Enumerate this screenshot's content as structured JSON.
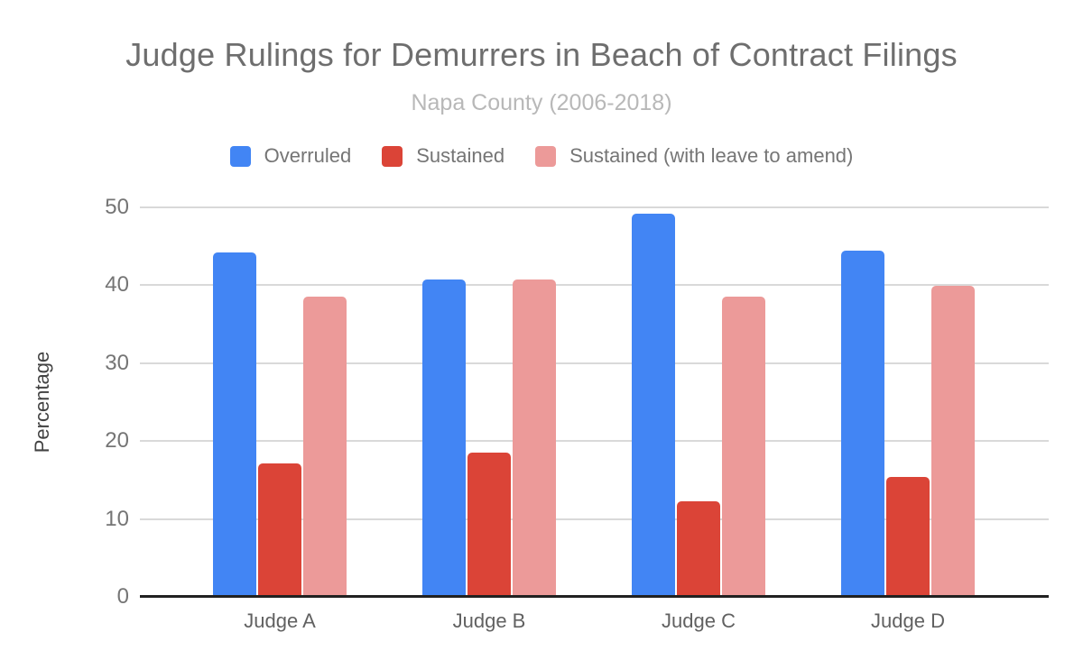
{
  "title": "Judge Rulings for Demurrers in Beach of Contract Filings",
  "subtitle": "Napa County (2006-2018)",
  "chart_data": {
    "type": "bar",
    "categories": [
      "Judge A",
      "Judge B",
      "Judge C",
      "Judge D"
    ],
    "series": [
      {
        "name": "Overruled",
        "color": "#4285F4",
        "values": [
          44.2,
          40.8,
          49.2,
          44.5
        ]
      },
      {
        "name": "Sustained",
        "color": "#DB4437",
        "values": [
          17.1,
          18.5,
          12.3,
          15.4
        ]
      },
      {
        "name": "Sustained (with leave to amend)",
        "color": "#EC9A99",
        "values": [
          38.5,
          40.8,
          38.5,
          39.9
        ]
      }
    ],
    "xlabel": "",
    "ylabel": "Percentage",
    "y_ticks": [
      0,
      10,
      20,
      30,
      40,
      50
    ],
    "ylim": [
      0,
      50
    ],
    "legend_position": "top",
    "grid": true
  },
  "colors": {
    "gridline": "#d9d9d9",
    "axis_line": "#212121",
    "background": "#ffffff"
  }
}
